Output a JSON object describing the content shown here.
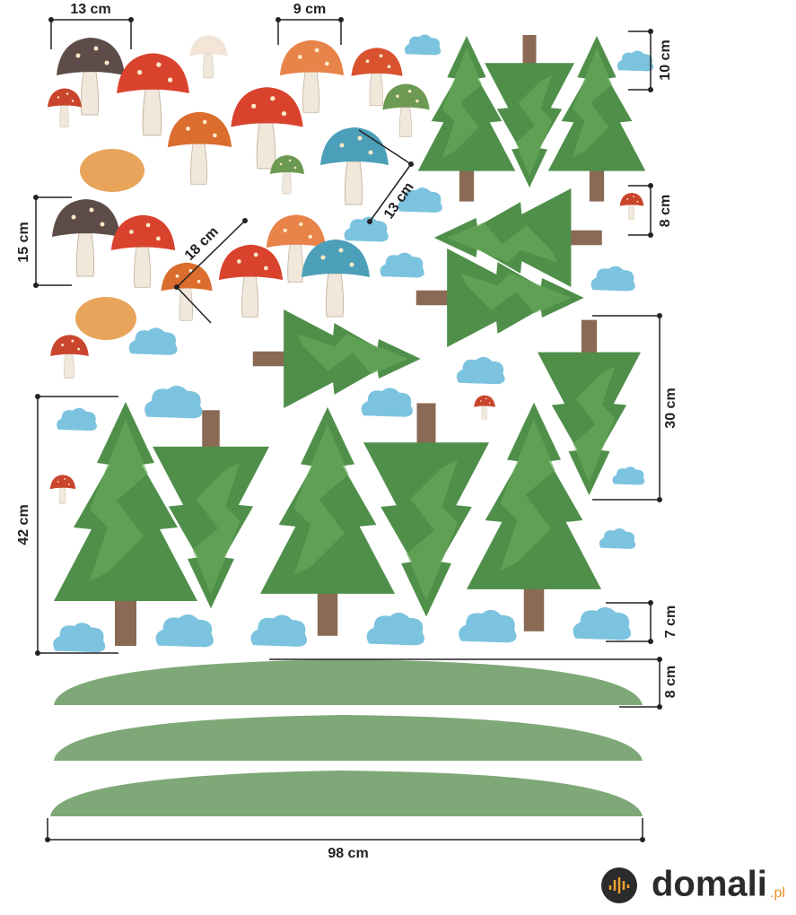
{
  "dimensions": [
    "13 cm",
    "9 cm",
    "10 cm",
    "8 cm",
    "15 cm",
    "18 cm",
    "13 cm",
    "42 cm",
    "30 cm",
    "7 cm",
    "8 cm",
    "98 cm"
  ],
  "brand": {
    "name": "domali",
    "domain": ".pl"
  }
}
